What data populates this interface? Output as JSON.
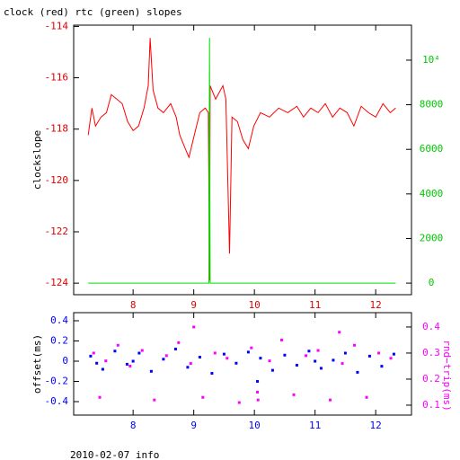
{
  "title": "clock (red) rtc (green) slopes",
  "footer": "2010-02-07 info",
  "chart_data": [
    {
      "type": "line",
      "ylabel": "clockslope",
      "xlim": [
        7.02,
        12.59
      ],
      "xticks": [
        8,
        9,
        10,
        11,
        12
      ],
      "ylim": [
        -124.45,
        -113.95
      ],
      "yticks": [
        -124,
        -122,
        -120,
        -118,
        -116,
        -114
      ],
      "y2lim": [
        -520,
        11570
      ],
      "y2ticks": [
        0,
        2000,
        4000,
        6000,
        8000,
        {
          "value": 10000,
          "label": "10⁴"
        }
      ],
      "axis_colors": {
        "x": "#e00000",
        "y": "#e00000",
        "y2": "#00c800"
      },
      "series": [
        {
          "name": "clock",
          "color": "#ff0000",
          "x": [
            7.26,
            7.32,
            7.38,
            7.47,
            7.56,
            7.64,
            7.73,
            7.82,
            7.91,
            8.0,
            8.09,
            8.18,
            8.25,
            8.28,
            8.33,
            8.41,
            8.5,
            8.62,
            8.71,
            8.77,
            8.86,
            8.92,
            9.01,
            9.1,
            9.19,
            9.24,
            9.26,
            9.27,
            9.36,
            9.48,
            9.53,
            9.59,
            9.63,
            9.72,
            9.81,
            9.9,
            9.99,
            10.1,
            10.25,
            10.4,
            10.55,
            10.7,
            10.81,
            10.93,
            11.05,
            11.17,
            11.29,
            11.41,
            11.53,
            11.64,
            11.76,
            11.88,
            12.0,
            12.12,
            12.24,
            12.33
          ],
          "values": [
            -118.23,
            -117.18,
            -117.88,
            -117.53,
            -117.36,
            -116.66,
            -116.83,
            -117.01,
            -117.71,
            -118.06,
            -117.88,
            -117.18,
            -116.31,
            -114.45,
            -116.48,
            -117.18,
            -117.36,
            -117.01,
            -117.53,
            -118.23,
            -118.76,
            -119.1,
            -118.23,
            -117.36,
            -117.18,
            -117.36,
            -123.9,
            -116.31,
            -116.83,
            -116.31,
            -116.83,
            -122.85,
            -117.53,
            -117.71,
            -118.41,
            -118.76,
            -117.88,
            -117.36,
            -117.53,
            -117.18,
            -117.36,
            -117.11,
            -117.53,
            -117.18,
            -117.36,
            -117.01,
            -117.53,
            -117.18,
            -117.36,
            -117.88,
            -117.11,
            -117.36,
            -117.53,
            -117.01,
            -117.36,
            -117.18
          ]
        },
        {
          "name": "rtc",
          "color": "#00dd00",
          "axis": "y2",
          "x": [
            7.26,
            9.25,
            9.26,
            9.27,
            12.33
          ],
          "values": [
            0,
            0,
            11000,
            0,
            0
          ]
        }
      ]
    },
    {
      "type": "scatter",
      "ylabel": "offset(ms)",
      "y2label": "rnd−trip(ms)",
      "xlim": [
        7.02,
        12.59
      ],
      "xticks": [
        8,
        9,
        10,
        11,
        12
      ],
      "ylim": [
        -0.533,
        0.48
      ],
      "yticks": [
        -0.4,
        -0.2,
        0,
        0.2,
        0.4
      ],
      "y2lim": [
        0.062,
        0.455
      ],
      "y2ticks": [
        0.1,
        0.2,
        0.3,
        0.4
      ],
      "axis_colors": {
        "x": "#0000ff",
        "y": "#0000ff",
        "y2": "#ff00ff"
      },
      "series": [
        {
          "name": "offset",
          "color": "#0000ff",
          "x": [
            7.3,
            7.5,
            7.7,
            7.9,
            8.1,
            8.3,
            8.5,
            8.7,
            8.9,
            9.1,
            9.3,
            9.5,
            9.7,
            9.9,
            10.05,
            10.1,
            10.3,
            10.5,
            10.7,
            10.9,
            11.1,
            11.3,
            11.5,
            11.7,
            11.9,
            12.1,
            12.3,
            7.4,
            8.0,
            11.0
          ],
          "values": [
            0.05,
            -0.08,
            0.1,
            -0.03,
            0.08,
            -0.1,
            0.02,
            0.12,
            -0.06,
            0.04,
            -0.12,
            0.07,
            -0.02,
            0.09,
            -0.2,
            0.03,
            -0.09,
            0.06,
            -0.04,
            0.1,
            -0.07,
            0.01,
            0.08,
            -0.11,
            0.05,
            -0.05,
            0.07,
            -0.02,
            0,
            0
          ]
        },
        {
          "name": "rnd-trip",
          "color": "#ff00ff",
          "axis": "y2",
          "x": [
            7.35,
            7.55,
            7.75,
            7.95,
            8.15,
            8.35,
            8.55,
            8.75,
            8.95,
            9.15,
            9.35,
            9.55,
            9.75,
            9.95,
            10.05,
            10.06,
            10.25,
            10.45,
            10.65,
            10.85,
            11.05,
            11.25,
            11.45,
            11.65,
            11.85,
            12.05,
            12.25,
            7.45,
            9.0,
            11.4
          ],
          "values": [
            0.3,
            0.27,
            0.33,
            0.25,
            0.31,
            0.12,
            0.29,
            0.34,
            0.26,
            0.13,
            0.3,
            0.28,
            0.11,
            0.32,
            0.15,
            0.12,
            0.27,
            0.35,
            0.14,
            0.29,
            0.31,
            0.12,
            0.26,
            0.33,
            0.13,
            0.3,
            0.28,
            0.13,
            0.4,
            0.38
          ]
        }
      ]
    }
  ]
}
